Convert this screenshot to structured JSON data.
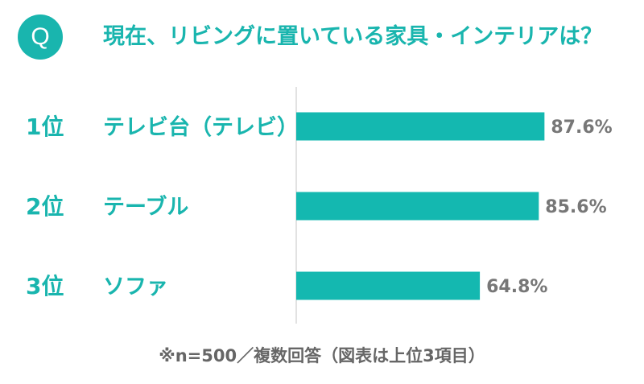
{
  "question": {
    "badge": "Q",
    "text": "現在、リビングに置いている家具・インテリアは？"
  },
  "colors": {
    "accent": "#19b5ae",
    "bar": "#14b8b0",
    "value_label": "#777777",
    "rank_label": "#19b5ae",
    "axis": "#d9d9d9"
  },
  "chart_data": {
    "type": "bar",
    "orientation": "horizontal",
    "title": "現在、リビングに置いている家具・インテリアは？",
    "ranks": [
      "1位",
      "2位",
      "3位"
    ],
    "categories": [
      "テレビ台（テレビ）",
      "テーブル",
      "ソファ"
    ],
    "values": [
      87.6,
      85.6,
      64.8
    ],
    "value_labels": [
      "87.6%",
      "85.6%",
      "64.8%"
    ],
    "xlim": [
      0,
      100
    ],
    "grid": false,
    "legend": "none"
  },
  "footnote": "※n=500／複数回答（図表は上位3項目）"
}
